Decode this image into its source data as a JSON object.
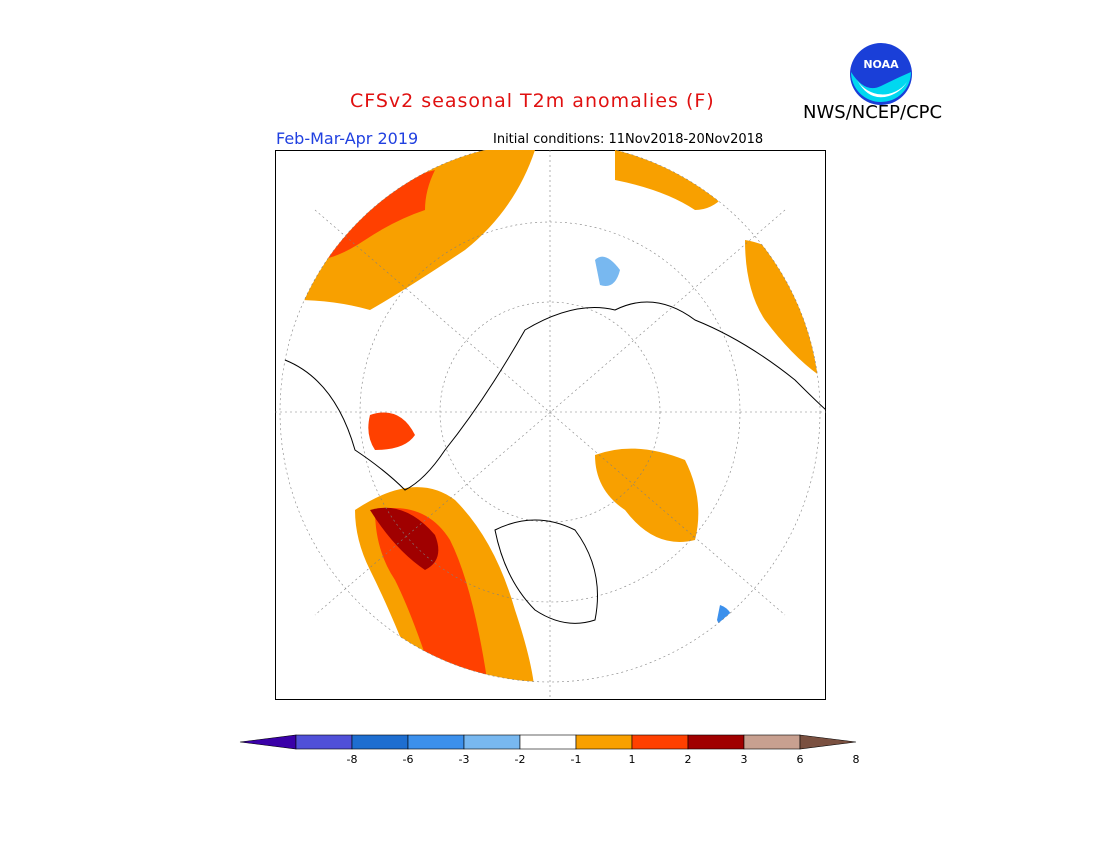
{
  "header": {
    "title": "CFSv2 seasonal T2m anomalies (F)",
    "org": "NWS/NCEP/CPC",
    "period": "Feb-Mar-Apr 2019",
    "initial_conditions": "Initial conditions: 11Nov2018-20Nov2018",
    "logo_text": "NOAA"
  },
  "legend": {
    "colors": [
      "#3a00a8",
      "#5050d8",
      "#1e6ed0",
      "#3c90ec",
      "#78b8f0",
      "#ffffff",
      "#f8a000",
      "#ff4000",
      "#a00000",
      "#c8a090",
      "#7a5040"
    ],
    "ticks": [
      "-8",
      "-6",
      "-3",
      "-2",
      "-1",
      "1",
      "2",
      "3",
      "6",
      "8"
    ]
  }
}
